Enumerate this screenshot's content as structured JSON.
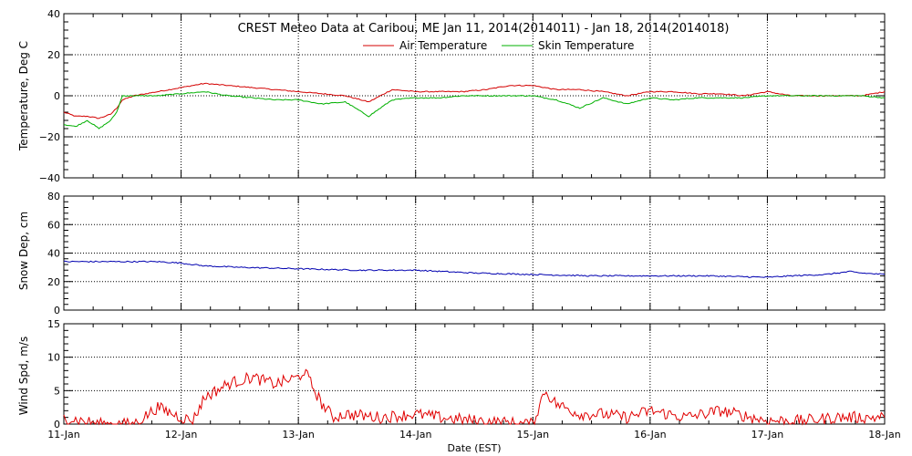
{
  "colors": {
    "air": "#d40000",
    "skin": "#00b000",
    "snow": "#0000b0",
    "wind": "#e00000",
    "frame": "#000000",
    "grid": "#000000"
  },
  "chart_data": [
    {
      "id": "temperature",
      "type": "line",
      "title": "CREST Meteo Data at Caribou, ME    Jan 11, 2014(2014011) - Jan 18, 2014(2014018)",
      "ylabel": "Temperature, Deg C",
      "ylim": [
        -40,
        40
      ],
      "yticks": [
        "40",
        "20",
        "0",
        "−20",
        "−40"
      ],
      "xlim": [
        0,
        7
      ],
      "grid": "dotted",
      "legend_position": "top-center",
      "series": [
        {
          "name": "Air Temperature",
          "color": "#d40000",
          "x": [
            0,
            0.1,
            0.2,
            0.3,
            0.4,
            0.45,
            0.5,
            0.6,
            0.8,
            1.0,
            1.2,
            1.4,
            1.6,
            1.8,
            2.0,
            2.2,
            2.4,
            2.6,
            2.8,
            3.0,
            3.2,
            3.4,
            3.6,
            3.8,
            4.0,
            4.1,
            4.2,
            4.4,
            4.6,
            4.8,
            5.0,
            5.2,
            5.4,
            5.6,
            5.8,
            6.0,
            6.2,
            6.4,
            6.6,
            6.8,
            7.0
          ],
          "y": [
            -8,
            -10,
            -10,
            -11,
            -9,
            -6,
            -2,
            0,
            2,
            4,
            6,
            5,
            4,
            3,
            2,
            1,
            0,
            -3,
            3,
            2,
            2,
            2,
            3,
            5,
            5,
            4,
            3,
            3,
            2,
            0,
            2,
            2,
            1,
            1,
            0,
            2,
            0,
            0,
            0,
            0,
            2
          ]
        },
        {
          "name": "Skin Temperature",
          "color": "#00b000",
          "x": [
            0,
            0.1,
            0.2,
            0.3,
            0.4,
            0.45,
            0.5,
            0.6,
            0.8,
            1.0,
            1.2,
            1.4,
            1.6,
            1.8,
            2.0,
            2.2,
            2.4,
            2.6,
            2.8,
            3.0,
            3.2,
            3.4,
            3.6,
            3.8,
            4.0,
            4.1,
            4.2,
            4.4,
            4.6,
            4.8,
            5.0,
            5.2,
            5.4,
            5.6,
            5.8,
            6.0,
            6.2,
            6.4,
            6.6,
            6.8,
            7.0
          ],
          "y": [
            -14,
            -15,
            -12,
            -16,
            -12,
            -8,
            0,
            0,
            0,
            1,
            2,
            0,
            -1,
            -2,
            -2,
            -4,
            -3,
            -10,
            -2,
            -1,
            -1,
            0,
            0,
            0,
            0,
            -1,
            -2,
            -6,
            -1,
            -4,
            -1,
            -2,
            -1,
            -1,
            -1,
            0,
            0,
            0,
            0,
            0,
            -1
          ]
        }
      ]
    },
    {
      "id": "snow",
      "type": "line",
      "ylabel": "Snow Dep, cm",
      "ylim": [
        0,
        80
      ],
      "yticks": [
        "80",
        "60",
        "40",
        "20",
        "0"
      ],
      "xlim": [
        0,
        7
      ],
      "grid": "dotted",
      "series": [
        {
          "color": "#0000b0",
          "x": [
            0,
            0.5,
            0.8,
            1.0,
            1.2,
            1.5,
            2.0,
            2.5,
            3.0,
            3.5,
            4.0,
            4.5,
            5.0,
            5.5,
            6.0,
            6.2,
            6.5,
            6.7,
            6.8,
            7.0
          ],
          "y": [
            34,
            34,
            34,
            33,
            31,
            30,
            29,
            28,
            28,
            26,
            25,
            24,
            24,
            24,
            23,
            24,
            25,
            27,
            26,
            25
          ]
        }
      ]
    },
    {
      "id": "wind",
      "type": "line",
      "ylabel": "Wind Spd, m/s",
      "xlabel": "Date (EST)",
      "ylim": [
        0,
        15
      ],
      "yticks": [
        "15",
        "10",
        "5",
        "0"
      ],
      "xlim": [
        0,
        7
      ],
      "grid": "dotted",
      "categories": [
        "11-Jan",
        "12-Jan",
        "13-Jan",
        "14-Jan",
        "15-Jan",
        "16-Jan",
        "17-Jan",
        "18-Jan"
      ],
      "series": [
        {
          "color": "#e00000",
          "x": [
            0,
            0.3,
            0.6,
            0.8,
            1.0,
            1.1,
            1.2,
            1.4,
            1.6,
            1.8,
            2.0,
            2.05,
            2.2,
            2.3,
            2.4,
            2.7,
            3.0,
            3.2,
            3.5,
            3.8,
            3.95,
            4.0,
            4.1,
            4.2,
            4.4,
            4.6,
            4.8,
            5.0,
            5.3,
            5.6,
            6.0,
            6.3,
            6.6,
            6.9,
            7.0
          ],
          "y": [
            1,
            0,
            0,
            2.5,
            1,
            0.5,
            4,
            6,
            7,
            6,
            7,
            8,
            3,
            1,
            1.5,
            1,
            1.5,
            1,
            0.5,
            0.2,
            0,
            0,
            5,
            3,
            1.5,
            1.5,
            1,
            2,
            1,
            2,
            0.5,
            0.5,
            1,
            1,
            1
          ]
        }
      ]
    }
  ]
}
